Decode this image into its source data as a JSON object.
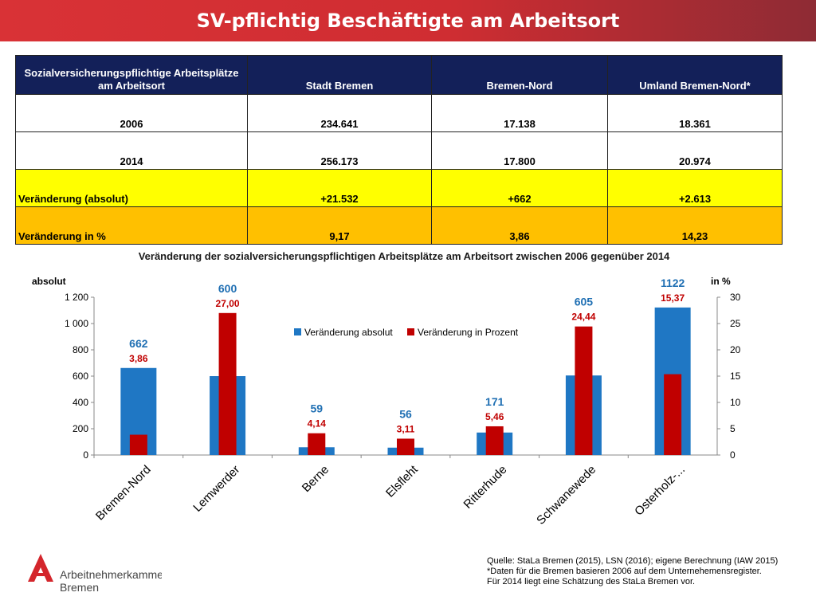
{
  "header": {
    "title": "SV-pflichtig Beschäftigte am Arbeitsort"
  },
  "table": {
    "headers": [
      "Sozialversicherungspflichtige Arbeitsplätze am Arbeitsort",
      "Stadt Bremen",
      "Bremen-Nord",
      "Umland Bremen-Nord*"
    ],
    "rows": [
      [
        "2006",
        "234.641",
        "17.138",
        "18.361"
      ],
      [
        "2014",
        "256.173",
        "17.800",
        "20.974"
      ],
      [
        "Veränderung (absolut)",
        "+21.532",
        "+662",
        "+2.613"
      ],
      [
        "Veränderung in %",
        "9,17",
        "3,86",
        "14,23"
      ]
    ]
  },
  "chart_data": {
    "type": "bar",
    "title": "Veränderung der sozialversicherungspflichtigen Arbeitsplätze am Arbeitsort zwischen 2006 gegenüber 2014",
    "categories": [
      "Bremen-Nord",
      "Lemwerder",
      "Berne",
      "Elsfleht",
      "Ritterhude",
      "Schwanewede",
      "Osterholz-..."
    ],
    "series": [
      {
        "name": "Veränderung absolut",
        "axis": "left",
        "color": "#1f77c4",
        "values": [
          662,
          600,
          59,
          56,
          171,
          605,
          1122
        ],
        "labels": [
          "662",
          "600",
          "59",
          "56",
          "171",
          "605",
          "1122"
        ]
      },
      {
        "name": "Veränderung in Prozent",
        "axis": "right",
        "color": "#c00000",
        "values": [
          3.86,
          27.0,
          4.14,
          3.11,
          5.46,
          24.44,
          15.37
        ],
        "labels": [
          "3,86",
          "27,00",
          "4,14",
          "3,11",
          "5,46",
          "24,44",
          "15,37"
        ]
      }
    ],
    "ylabel_left": "absolut",
    "ylabel_right": "in %",
    "ylim_left": [
      0,
      1200
    ],
    "ylim_right": [
      0,
      30
    ],
    "yticks_left": [
      "0",
      "200",
      "400",
      "600",
      "800",
      "1 000",
      "1 200"
    ],
    "yticks_right": [
      "0",
      "5",
      "10",
      "15",
      "20",
      "25",
      "30"
    ],
    "grid": false,
    "legend": "top-center"
  },
  "footer": {
    "logo_line1": "Arbeitnehmerkammer",
    "logo_line2": "Bremen",
    "source_lines": [
      "Quelle: StaLa Bremen (2015), LSN (2016); eigene Berechnung (IAW 2015)",
      "*Daten für die Bremen basieren 2006 auf dem Unternehemensregister.",
      "Für 2014 liegt eine Schätzung des StaLa Bremen vor."
    ]
  }
}
